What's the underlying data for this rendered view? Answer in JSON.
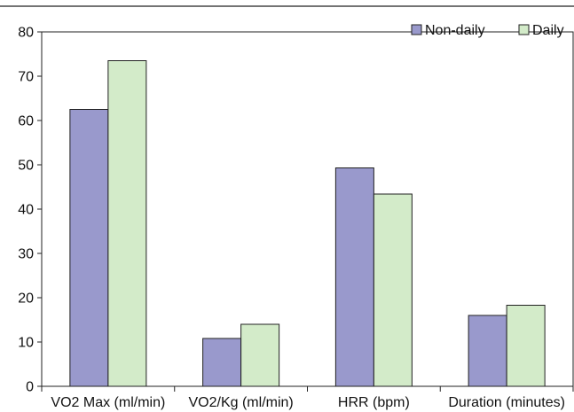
{
  "chart_data": {
    "type": "bar",
    "title": "",
    "xlabel": "",
    "ylabel": "",
    "categories": [
      "VO2 Max (ml/min)",
      "VO2/Kg (ml/min)",
      "HRR (bpm)",
      "Duration (minutes)"
    ],
    "series": [
      {
        "name": "Non-daily",
        "values": [
          62.5,
          10.8,
          49.3,
          16.0
        ],
        "color": "#9999cc"
      },
      {
        "name": "Daily",
        "values": [
          73.5,
          14.0,
          43.4,
          18.3
        ],
        "color": "#d3ebc9"
      }
    ],
    "ylim": [
      0,
      80
    ],
    "yticks": [
      0,
      10,
      20,
      30,
      40,
      50,
      60,
      70,
      80
    ],
    "legend_position": "top-right",
    "grid": false,
    "bar_stroke": "#222222",
    "axis_color": "#222222"
  }
}
